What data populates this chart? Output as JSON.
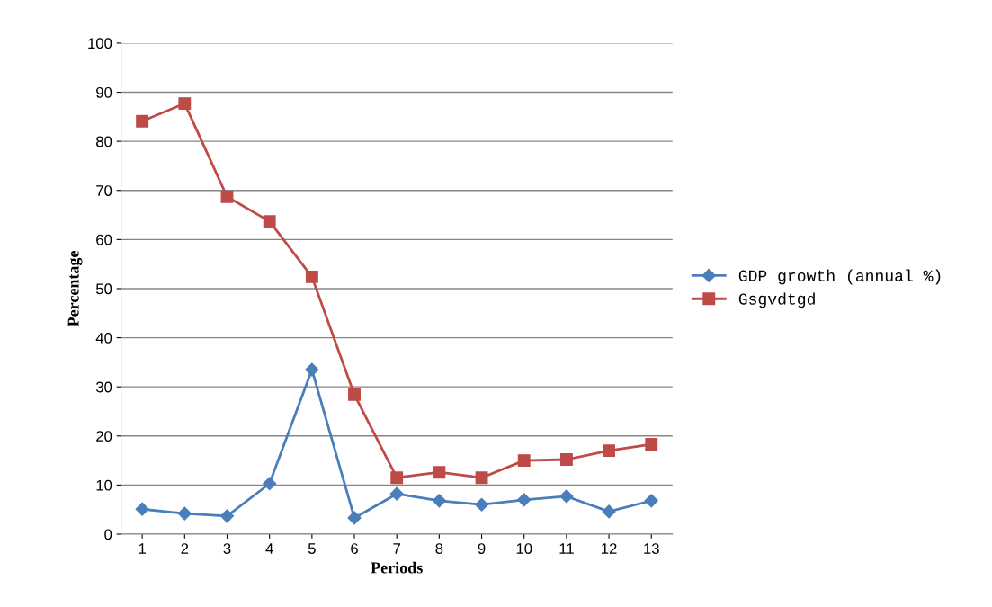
{
  "chart_data": {
    "type": "line",
    "xlabel": "Periods",
    "ylabel": "Percentage",
    "categories": [
      "1",
      "2",
      "3",
      "4",
      "5",
      "6",
      "7",
      "8",
      "9",
      "10",
      "11",
      "12",
      "13"
    ],
    "series": [
      {
        "name": "GDP growth (annual %)",
        "color": "#4a7ebb",
        "marker": "diamond",
        "values": [
          5.1,
          4.2,
          3.7,
          10.3,
          33.5,
          3.3,
          8.2,
          6.8,
          6.0,
          7.0,
          7.7,
          4.6,
          6.8
        ]
      },
      {
        "name": "Gsgvdtgd",
        "color": "#be4b48",
        "marker": "square",
        "values": [
          84.1,
          87.7,
          68.7,
          63.7,
          52.4,
          28.4,
          11.5,
          12.6,
          11.5,
          15.0,
          15.2,
          17.0,
          18.3
        ]
      }
    ],
    "ylim": [
      0,
      100
    ],
    "yticks": [
      0,
      10,
      20,
      30,
      40,
      50,
      60,
      70,
      80,
      90,
      100
    ],
    "grid": "y",
    "legend": "right"
  }
}
